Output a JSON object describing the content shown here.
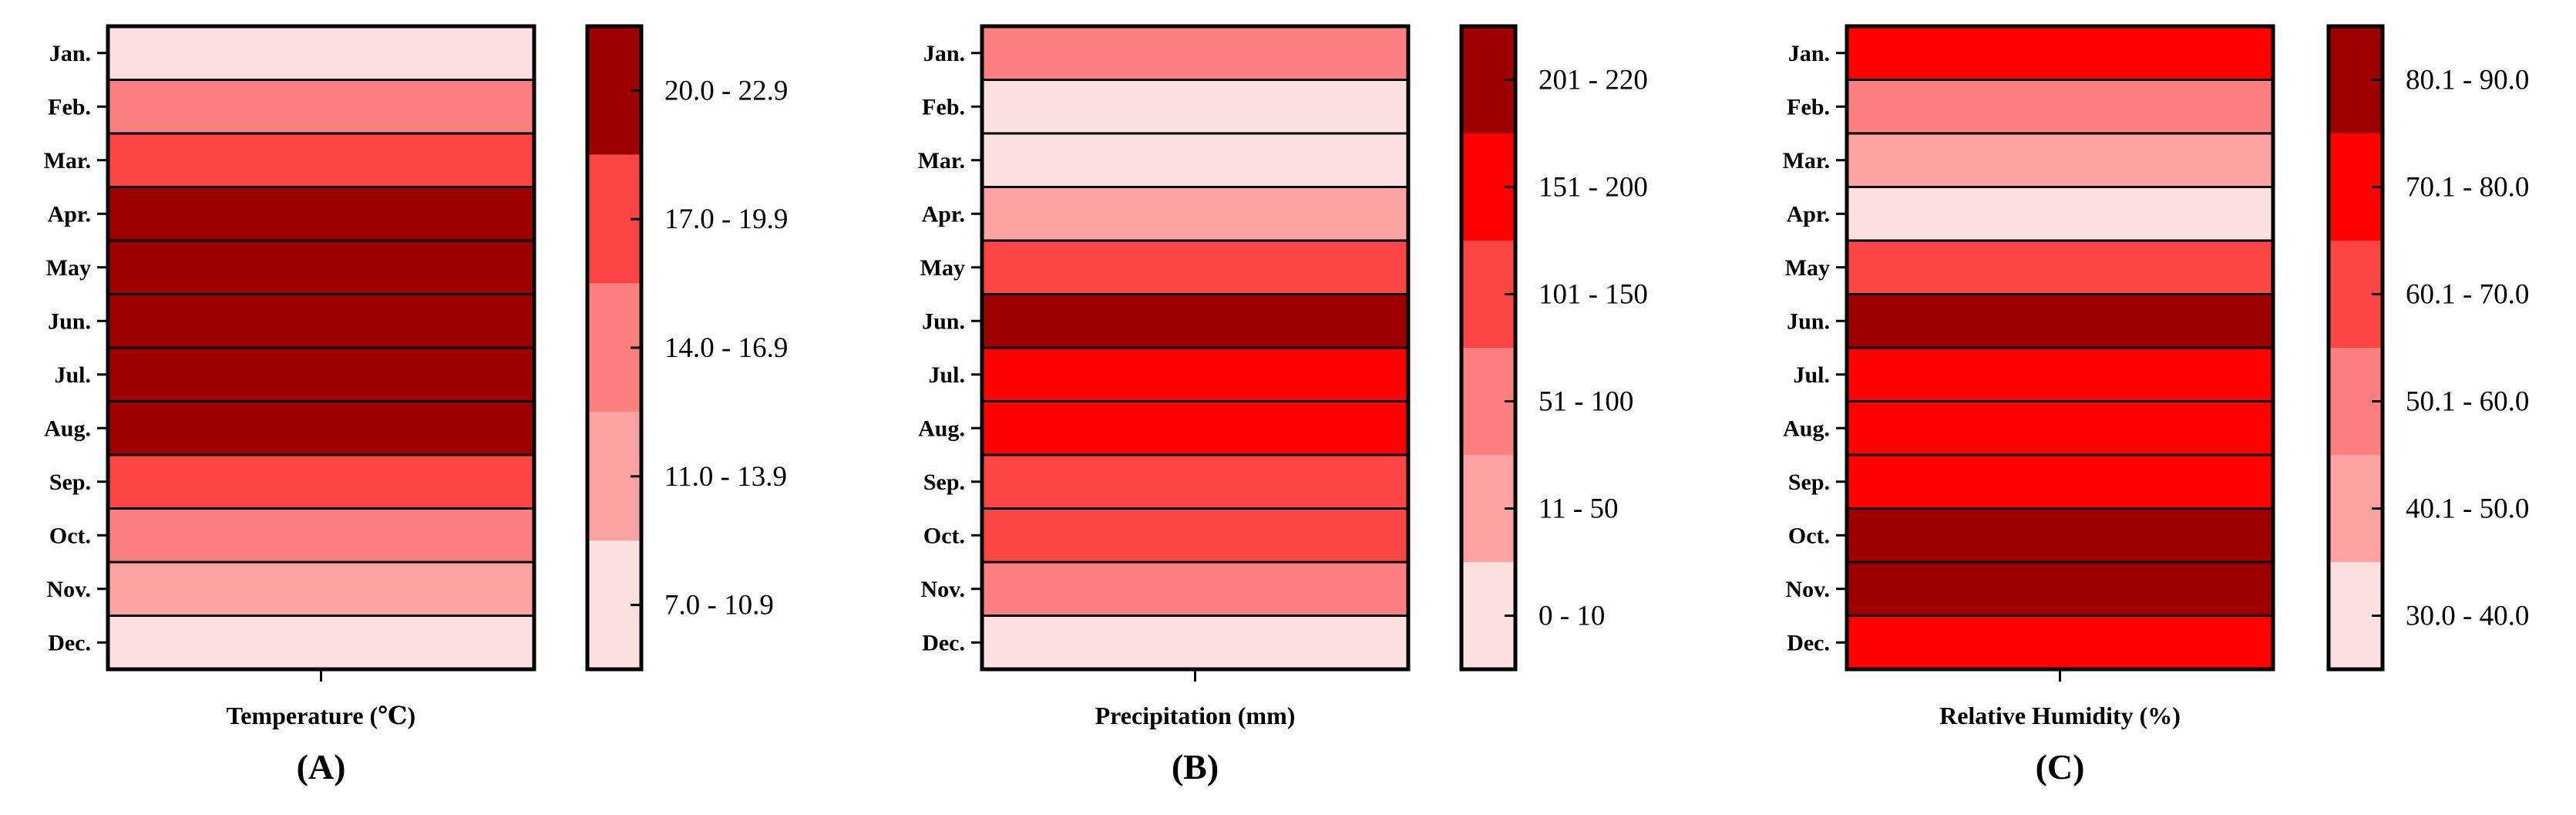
{
  "colors": {
    "level_1": "#fde0e0",
    "level_2": "#fda2a2",
    "level_3": "#fd8080",
    "level_4": "#fb4545",
    "level_5": "#fe0000",
    "level_6": "#9e0000",
    "border": "#000000"
  },
  "chart_data": [
    {
      "type": "heatmap",
      "panel_label": "(A)",
      "xlabel": "Temperature (℃)",
      "categories": [
        "Jan.",
        "Feb.",
        "Mar.",
        "Apr.",
        "May",
        "Jun.",
        "Jul.",
        "Aug.",
        "Sep.",
        "Oct.",
        "Nov.",
        "Dec."
      ],
      "class_index": [
        0,
        2,
        3,
        4,
        4,
        4,
        4,
        4,
        3,
        2,
        1,
        0
      ],
      "legend": {
        "classes": [
          "7.0 - 10.9",
          "11.0 - 13.9",
          "14.0 - 16.9",
          "17.0 - 19.9",
          "20.0 - 22.9"
        ],
        "colors": [
          "#fde0e0",
          "#fda2a2",
          "#fd8080",
          "#fb4545",
          "#9e0000"
        ]
      }
    },
    {
      "type": "heatmap",
      "panel_label": "(B)",
      "xlabel": "Precipitation (mm)",
      "categories": [
        "Jan.",
        "Feb.",
        "Mar.",
        "Apr.",
        "May",
        "Jun.",
        "Jul.",
        "Aug.",
        "Sep.",
        "Oct.",
        "Nov.",
        "Dec."
      ],
      "class_index": [
        2,
        0,
        0,
        1,
        3,
        5,
        4,
        4,
        3,
        3,
        2,
        0
      ],
      "legend": {
        "classes": [
          "0 - 10",
          "11 - 50",
          "51 - 100",
          "101 - 150",
          "151 - 200",
          "201 - 220"
        ],
        "colors": [
          "#fde0e0",
          "#fda2a2",
          "#fd8080",
          "#fb4545",
          "#fe0000",
          "#9e0000"
        ]
      }
    },
    {
      "type": "heatmap",
      "panel_label": "(C)",
      "xlabel": "Relative Humidity (%)",
      "categories": [
        "Jan.",
        "Feb.",
        "Mar.",
        "Apr.",
        "May",
        "Jun.",
        "Jul.",
        "Aug.",
        "Sep.",
        "Oct.",
        "Nov.",
        "Dec."
      ],
      "class_index": [
        4,
        2,
        1,
        0,
        3,
        5,
        4,
        4,
        4,
        5,
        5,
        4
      ],
      "legend": {
        "classes": [
          "30.0 - 40.0",
          "40.1 - 50.0",
          "50.1 - 60.0",
          "60.1 - 70.0",
          "70.1 - 80.0",
          "80.1 - 90.0"
        ],
        "colors": [
          "#fde0e0",
          "#fda2a2",
          "#fd8080",
          "#fb4545",
          "#fe0000",
          "#9e0000"
        ]
      }
    }
  ]
}
